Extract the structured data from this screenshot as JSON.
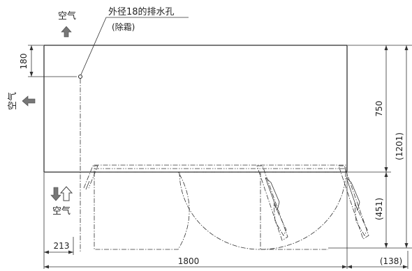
{
  "labels": {
    "air_top": "空气",
    "air_left": "空气",
    "air_bottom": "空气",
    "drain_hole": "外径18的排水孔",
    "defrost": "(除霜)"
  },
  "dimensions": {
    "drain_offset": "180",
    "body_depth": "750",
    "total_depth": "(1201)",
    "door_swing": "(451)",
    "side_offset": "213",
    "total_width": "1800",
    "right_overhang": "(138)"
  }
}
